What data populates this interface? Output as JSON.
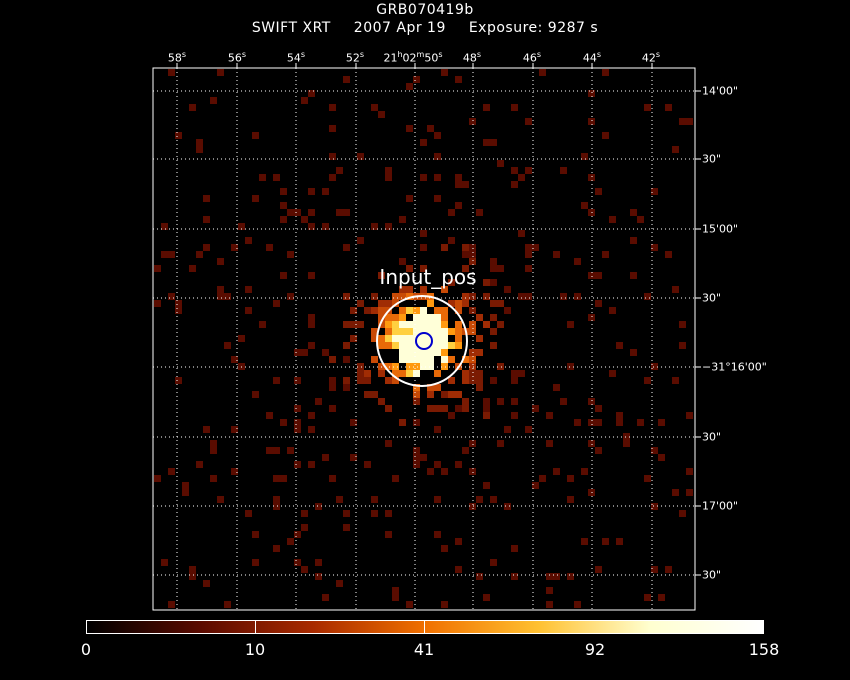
{
  "header": {
    "object": "GRB070419b",
    "instrument": "SWIFT XRT",
    "date": "2007 Apr 19",
    "exposure": "Exposure: 9287 s"
  },
  "ra_ticks": [
    {
      "label": "58",
      "unit": "s"
    },
    {
      "label": "56",
      "unit": "s"
    },
    {
      "label": "54",
      "unit": "s"
    },
    {
      "label": "52",
      "unit": "s"
    },
    {
      "label": "21h02m50",
      "unit": "s"
    },
    {
      "label": "48",
      "unit": "s"
    },
    {
      "label": "46",
      "unit": "s"
    },
    {
      "label": "44",
      "unit": "s"
    },
    {
      "label": "42",
      "unit": "s"
    }
  ],
  "dec_ticks": [
    "14'00\"",
    "30\"",
    "15'00\"",
    "30\"",
    "−31°16'00\"",
    "30\"",
    "17'00\"",
    "30\""
  ],
  "region_label": "Input_pos",
  "colorbar": {
    "labels": [
      "0",
      "10",
      "41",
      "92",
      "158"
    ],
    "colors": [
      "#000000",
      "#5a0a00",
      "#a82a00",
      "#f07000",
      "#ffc030",
      "#ffffd0",
      "#ffffff"
    ]
  },
  "colors": {
    "background": "#000000",
    "region_outer": "#ffffff",
    "region_inner": "#0000cc"
  }
}
